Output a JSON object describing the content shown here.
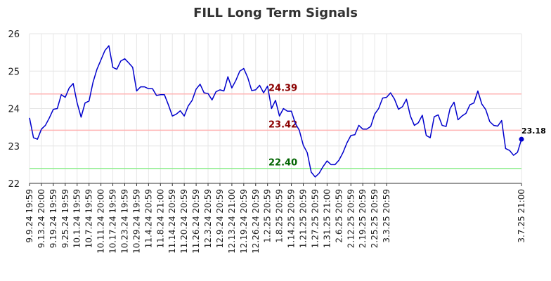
{
  "chart_data": {
    "type": "line",
    "title": "FILL Long Term Signals",
    "xlabel": "",
    "ylabel": "",
    "ylim": [
      22,
      26
    ],
    "yticks": [
      22,
      23,
      24,
      25,
      26
    ],
    "grid": true,
    "x_tick_labels": [
      "9.9.24 19:59",
      "9.13.24 20:00",
      "9.19.24 19:59",
      "9.25.24 19:59",
      "10.1.24 19:59",
      "10.7.24 19:59",
      "10.11.24 20:00",
      "10.17.24 19:59",
      "10.23.24 19:59",
      "10.29.24 19:59",
      "11.4.24 20:59",
      "11.8.24 21:00",
      "11.14.24 20:59",
      "11.20.24 20:59",
      "11.26.24 20:59",
      "12.3.24 20:59",
      "12.9.24 20:59",
      "12.13.24 21:00",
      "12.19.24 20:59",
      "12.26.24 20:59",
      "1.2.25 20:59",
      "1.8.25 20:59",
      "1.14.25 20:59",
      "1.21.25 20:59",
      "1.27.25 20:59",
      "1.31.25 21:00",
      "2.6.25 20:59",
      "2.12.25 20:59",
      "2.19.25 20:59",
      "2.25.25 20:59",
      "3.3.25 20:59",
      "3.7.25 21:00"
    ],
    "tick_every": 3,
    "series": [
      {
        "color": "#0000cc",
        "values": [
          23.75,
          23.22,
          23.18,
          23.45,
          23.55,
          23.75,
          23.98,
          24.0,
          24.37,
          24.3,
          24.55,
          24.67,
          24.15,
          23.77,
          24.15,
          24.2,
          24.7,
          25.05,
          25.3,
          25.55,
          25.68,
          25.1,
          25.05,
          25.27,
          25.33,
          25.22,
          25.1,
          24.47,
          24.58,
          24.58,
          24.53,
          24.53,
          24.35,
          24.37,
          24.37,
          24.1,
          23.8,
          23.85,
          23.94,
          23.8,
          24.07,
          24.22,
          24.52,
          24.65,
          24.42,
          24.4,
          24.23,
          24.45,
          24.5,
          24.47,
          24.85,
          24.55,
          24.75,
          25.0,
          25.07,
          24.83,
          24.48,
          24.5,
          24.62,
          24.42,
          24.6,
          24.0,
          24.22,
          23.8,
          24.0,
          23.93,
          23.93,
          23.6,
          23.42,
          23.02,
          22.82,
          22.3,
          22.17,
          22.27,
          22.45,
          22.6,
          22.5,
          22.5,
          22.62,
          22.82,
          23.08,
          23.28,
          23.3,
          23.55,
          23.45,
          23.45,
          23.52,
          23.85,
          24.0,
          24.28,
          24.3,
          24.42,
          24.25,
          23.98,
          24.05,
          24.25,
          23.8,
          23.55,
          23.62,
          23.82,
          23.28,
          23.22,
          23.78,
          23.83,
          23.55,
          23.52,
          24.0,
          24.17,
          23.7,
          23.8,
          23.87,
          24.1,
          24.15,
          24.47,
          24.12,
          23.97,
          23.65,
          23.55,
          23.53,
          23.68,
          22.93,
          22.88,
          22.75,
          22.83,
          23.18
        ]
      }
    ],
    "levels": [
      {
        "value": 24.39,
        "label": "24.39",
        "line_color": "#ffb3b3",
        "text_color": "#8b0000"
      },
      {
        "value": 23.42,
        "label": "23.42",
        "line_color": "#ffb3b3",
        "text_color": "#8b0000"
      },
      {
        "value": 22.4,
        "label": "22.40",
        "line_color": "#90ee90",
        "text_color": "#006400"
      }
    ],
    "last_value_label": "23.18"
  }
}
